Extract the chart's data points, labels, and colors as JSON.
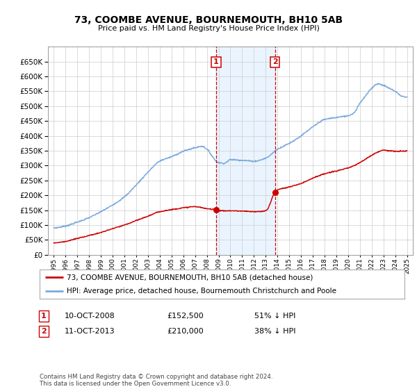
{
  "title": "73, COOMBE AVENUE, BOURNEMOUTH, BH10 5AB",
  "subtitle": "Price paid vs. HM Land Registry's House Price Index (HPI)",
  "legend_line1": "73, COOMBE AVENUE, BOURNEMOUTH, BH10 5AB (detached house)",
  "legend_line2": "HPI: Average price, detached house, Bournemouth Christchurch and Poole",
  "transaction1_date": "10-OCT-2008",
  "transaction1_price": "£152,500",
  "transaction1_hpi": "51% ↓ HPI",
  "transaction2_date": "11-OCT-2013",
  "transaction2_price": "£210,000",
  "transaction2_hpi": "38% ↓ HPI",
  "footer": "Contains HM Land Registry data © Crown copyright and database right 2024.\nThis data is licensed under the Open Government Licence v3.0.",
  "hpi_color": "#7aaadd",
  "price_color": "#cc0000",
  "marker_color": "#cc0000",
  "background_color": "#ffffff",
  "plot_bg_color": "#ffffff",
  "shade_color": "#ddeeff",
  "ylim_min": 0,
  "ylim_max": 700000,
  "yticks": [
    0,
    50000,
    100000,
    150000,
    200000,
    250000,
    300000,
    350000,
    400000,
    450000,
    500000,
    550000,
    600000,
    650000
  ],
  "xlim_min": 1994.5,
  "xlim_max": 2025.5,
  "xticks": [
    1995,
    1996,
    1997,
    1998,
    1999,
    2000,
    2001,
    2002,
    2003,
    2004,
    2005,
    2006,
    2007,
    2008,
    2009,
    2010,
    2011,
    2012,
    2013,
    2014,
    2015,
    2016,
    2017,
    2018,
    2019,
    2020,
    2021,
    2022,
    2023,
    2024,
    2025
  ],
  "sale1_x": 2008.79,
  "sale1_y": 152500,
  "sale2_x": 2013.79,
  "sale2_y": 210000
}
